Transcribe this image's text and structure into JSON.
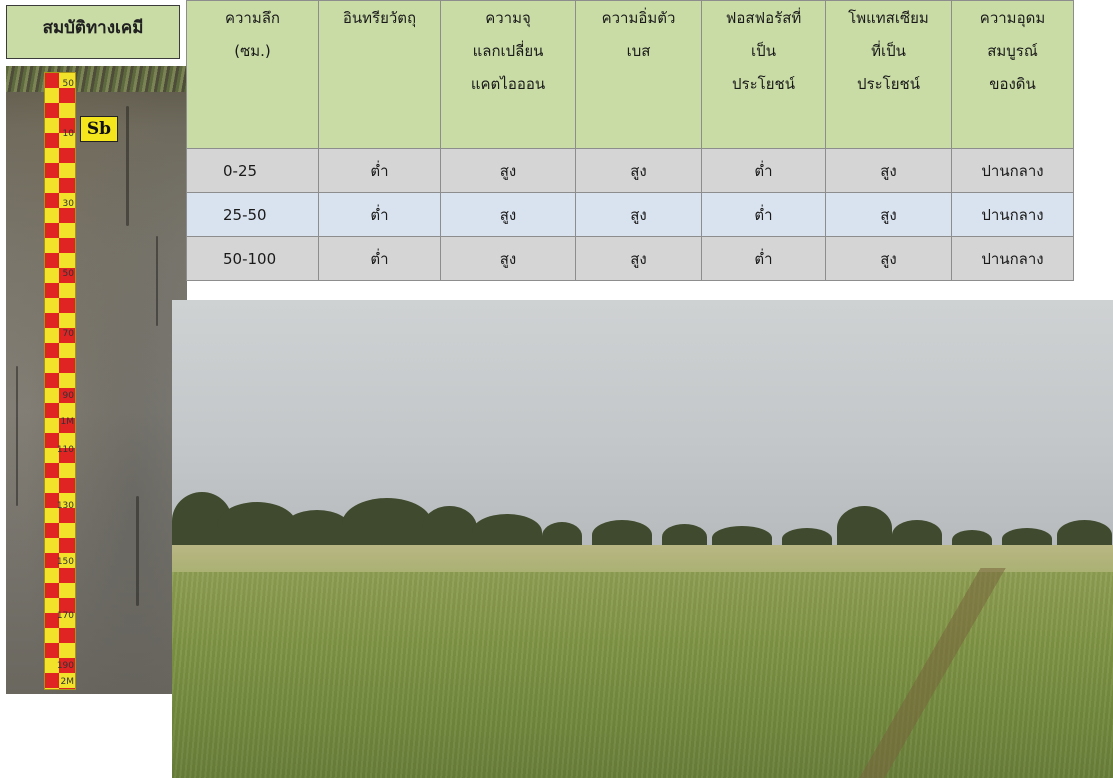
{
  "title": "สมบัติทางเคมี",
  "soil_photo": {
    "label": "Sb",
    "ruler_marks": [
      "50",
      "10",
      "30",
      "50",
      "70",
      "90",
      "1M",
      "110",
      "130",
      "150",
      "170",
      "190",
      "2M"
    ]
  },
  "table": {
    "headers": [
      [
        "ความลึก",
        "(ซม.)"
      ],
      [
        "อินทรียวัตถุ"
      ],
      [
        "ความจุ",
        "แลกเปลี่ยน",
        "แคตไอออน"
      ],
      [
        "ความอิ่มตัว",
        "เบส"
      ],
      [
        "ฟอสฟอรัสที่",
        "เป็น",
        "ประโยชน์"
      ],
      [
        "โพแทสเซียม",
        "ที่เป็น",
        "ประโยชน์"
      ],
      [
        "ความอุดม",
        "สมบูรณ์",
        "ของดิน"
      ]
    ],
    "rows": [
      [
        "0-25",
        "ต่ำ",
        "สูง",
        "สูง",
        "ต่ำ",
        "สูง",
        "ปานกลาง"
      ],
      [
        "25-50",
        "ต่ำ",
        "สูง",
        "สูง",
        "ต่ำ",
        "สูง",
        "ปานกลาง"
      ],
      [
        "50-100",
        "ต่ำ",
        "สูง",
        "สูง",
        "ต่ำ",
        "สูง",
        "ปานกลาง"
      ]
    ]
  },
  "colors": {
    "header_bg": "#c9dca6",
    "row_gray": "#d5d5d5",
    "row_blue": "#d9e2ef"
  }
}
